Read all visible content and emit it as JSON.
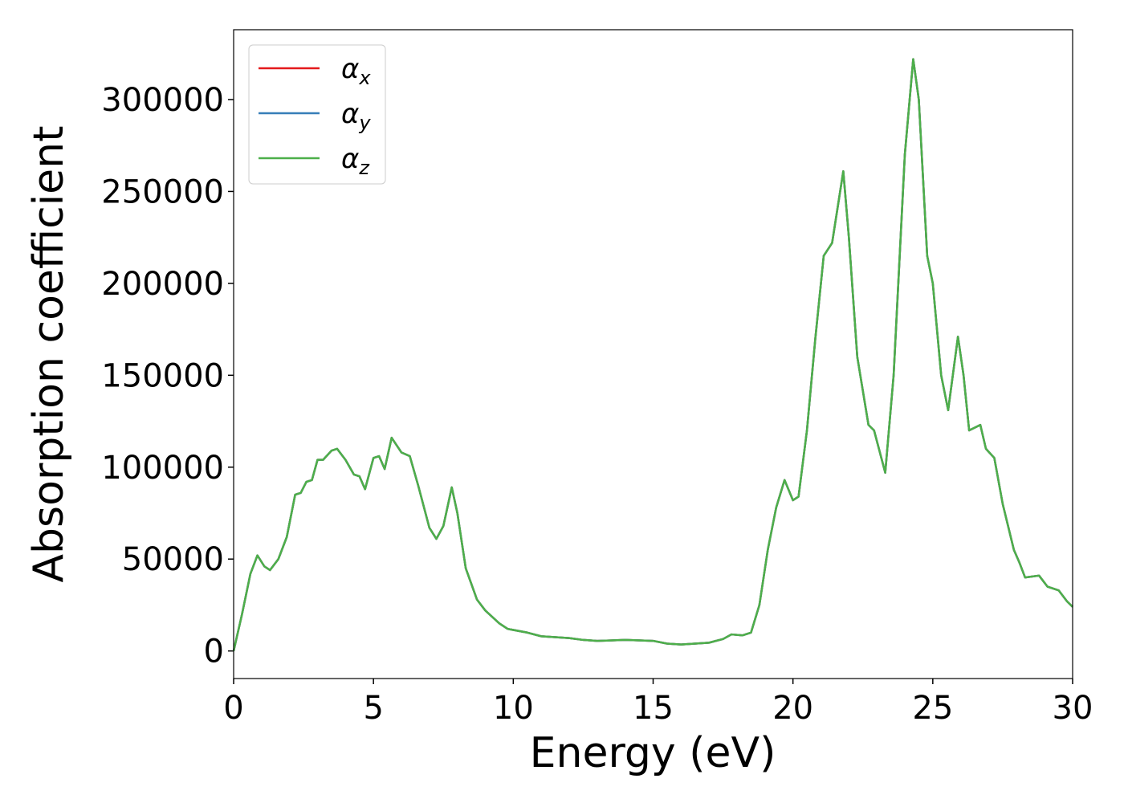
{
  "chart_data": {
    "type": "line",
    "xlabel": "Energy (eV)",
    "ylabel": "Absorption coefficient",
    "x": [
      0,
      0.3,
      0.6,
      0.85,
      1.1,
      1.3,
      1.6,
      1.9,
      2.2,
      2.4,
      2.6,
      2.8,
      3.0,
      3.2,
      3.5,
      3.7,
      4.0,
      4.3,
      4.5,
      4.7,
      5.0,
      5.2,
      5.4,
      5.65,
      6.0,
      6.3,
      6.6,
      7.0,
      7.25,
      7.5,
      7.8,
      8.0,
      8.3,
      8.7,
      9.0,
      9.5,
      9.8,
      10.5,
      11,
      12,
      12.5,
      13,
      14,
      15,
      15.5,
      16,
      17,
      17.5,
      17.8,
      18.2,
      18.5,
      18.8,
      19.1,
      19.4,
      19.7,
      20.0,
      20.2,
      20.5,
      20.8,
      21.1,
      21.4,
      21.8,
      22.0,
      22.3,
      22.7,
      22.9,
      23.3,
      23.6,
      24.0,
      24.3,
      24.5,
      24.8,
      25.0,
      25.3,
      25.55,
      25.9,
      26.1,
      26.3,
      26.7,
      26.9,
      27.2,
      27.5,
      27.9,
      28.1,
      28.3,
      28.8,
      29.1,
      29.5,
      29.8,
      30
    ],
    "series": [
      {
        "name": "αx",
        "color": "#e41a1c",
        "values": [
          0,
          20000,
          42000,
          52000,
          46000,
          44000,
          50000,
          62000,
          85000,
          86000,
          92000,
          93000,
          104000,
          104000,
          109000,
          110000,
          104000,
          96000,
          95000,
          88000,
          105000,
          106000,
          99000,
          116000,
          108000,
          106000,
          90000,
          67000,
          61000,
          68000,
          89000,
          75000,
          45000,
          28000,
          22000,
          15000,
          12000,
          10000,
          8000,
          7000,
          6000,
          5500,
          6000,
          5500,
          4000,
          3500,
          4500,
          6500,
          9000,
          8500,
          10000,
          25000,
          55000,
          78000,
          93000,
          82000,
          84000,
          120000,
          170000,
          215000,
          222000,
          261000,
          225000,
          160000,
          123000,
          120000,
          97000,
          150000,
          270000,
          322000,
          300000,
          215000,
          200000,
          150000,
          131000,
          171000,
          150000,
          120000,
          123000,
          110000,
          105000,
          80000,
          55000,
          48000,
          40000,
          41000,
          35000,
          33000,
          27000,
          24000
        ]
      },
      {
        "name": "αy",
        "color": "#377eb8",
        "values": [
          0,
          20000,
          42000,
          52000,
          46000,
          44000,
          50000,
          62000,
          85000,
          86000,
          92000,
          93000,
          104000,
          104000,
          109000,
          110000,
          104000,
          96000,
          95000,
          88000,
          105000,
          106000,
          99000,
          116000,
          108000,
          106000,
          90000,
          67000,
          61000,
          68000,
          89000,
          75000,
          45000,
          28000,
          22000,
          15000,
          12000,
          10000,
          8000,
          7000,
          6000,
          5500,
          6000,
          5500,
          4000,
          3500,
          4500,
          6500,
          9000,
          8500,
          10000,
          25000,
          55000,
          78000,
          93000,
          82000,
          84000,
          120000,
          170000,
          215000,
          222000,
          261000,
          225000,
          160000,
          123000,
          120000,
          97000,
          150000,
          270000,
          322000,
          300000,
          215000,
          200000,
          150000,
          131000,
          171000,
          150000,
          120000,
          123000,
          110000,
          105000,
          80000,
          55000,
          48000,
          40000,
          41000,
          35000,
          33000,
          27000,
          24000
        ]
      },
      {
        "name": "αz",
        "color": "#4daf4a",
        "values": [
          0,
          20000,
          42000,
          52000,
          46000,
          44000,
          50000,
          62000,
          85000,
          86000,
          92000,
          93000,
          104000,
          104000,
          109000,
          110000,
          104000,
          96000,
          95000,
          88000,
          105000,
          106000,
          99000,
          116000,
          108000,
          106000,
          90000,
          67000,
          61000,
          68000,
          89000,
          75000,
          45000,
          28000,
          22000,
          15000,
          12000,
          10000,
          8000,
          7000,
          6000,
          5500,
          6000,
          5500,
          4000,
          3500,
          4500,
          6500,
          9000,
          8500,
          10000,
          25000,
          55000,
          78000,
          93000,
          82000,
          84000,
          120000,
          170000,
          215000,
          222000,
          261000,
          225000,
          160000,
          123000,
          120000,
          97000,
          150000,
          270000,
          322000,
          300000,
          215000,
          200000,
          150000,
          131000,
          171000,
          150000,
          120000,
          123000,
          110000,
          105000,
          80000,
          55000,
          48000,
          40000,
          41000,
          35000,
          33000,
          27000,
          24000
        ]
      }
    ],
    "xlim": [
      0,
      30
    ],
    "xticks": [
      0,
      5,
      10,
      15,
      20,
      25,
      30
    ],
    "ylim": [
      -15000,
      338000
    ],
    "yticks": [
      0,
      50000,
      100000,
      150000,
      200000,
      250000,
      300000
    ],
    "legend": "upper left",
    "grid": false
  }
}
